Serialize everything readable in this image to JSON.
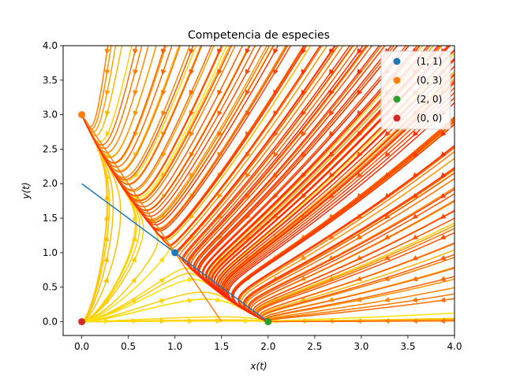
{
  "chart_data": {
    "type": "streamplot",
    "title": "Competencia de especies",
    "xlabel": "x(t)",
    "ylabel": "y(t)",
    "xlim": [
      -0.2,
      4.0
    ],
    "ylim": [
      -0.2,
      4.0
    ],
    "xticks": [
      0.0,
      0.5,
      1.0,
      1.5,
      2.0,
      2.5,
      3.0,
      3.5,
      4.0
    ],
    "yticks": [
      0.0,
      0.5,
      1.0,
      1.5,
      2.0,
      2.5,
      3.0,
      3.5,
      4.0
    ],
    "xtick_labels": [
      "0.0",
      "0.5",
      "1.0",
      "1.5",
      "2.0",
      "2.5",
      "3.0",
      "3.5",
      "4.0"
    ],
    "ytick_labels": [
      "0.0",
      "0.5",
      "1.0",
      "1.5",
      "2.0",
      "2.5",
      "3.0",
      "3.5",
      "4.0"
    ],
    "grid": false,
    "legend_position": "top-right",
    "stream_color_range": [
      "#ffee00",
      "#ff2a00"
    ],
    "series": [
      {
        "name": "",
        "kind": "nullcline",
        "color": "#1f77b4",
        "points": [
          [
            0,
            2
          ],
          [
            2,
            0
          ]
        ]
      },
      {
        "name": "",
        "kind": "nullcline",
        "color": "#ff7f0e",
        "points": [
          [
            0,
            3
          ],
          [
            1.5,
            0
          ]
        ]
      }
    ],
    "equilibria": [
      {
        "label": "(1, 1)",
        "x": 1,
        "y": 1,
        "color": "#1f77b4"
      },
      {
        "label": "(0, 3)",
        "x": 0,
        "y": 3,
        "color": "#ff7f0e"
      },
      {
        "label": "(2, 0)",
        "x": 2,
        "y": 0,
        "color": "#2ca02c"
      },
      {
        "label": "(0, 0)",
        "x": 0,
        "y": 0,
        "color": "#d62728"
      }
    ]
  }
}
